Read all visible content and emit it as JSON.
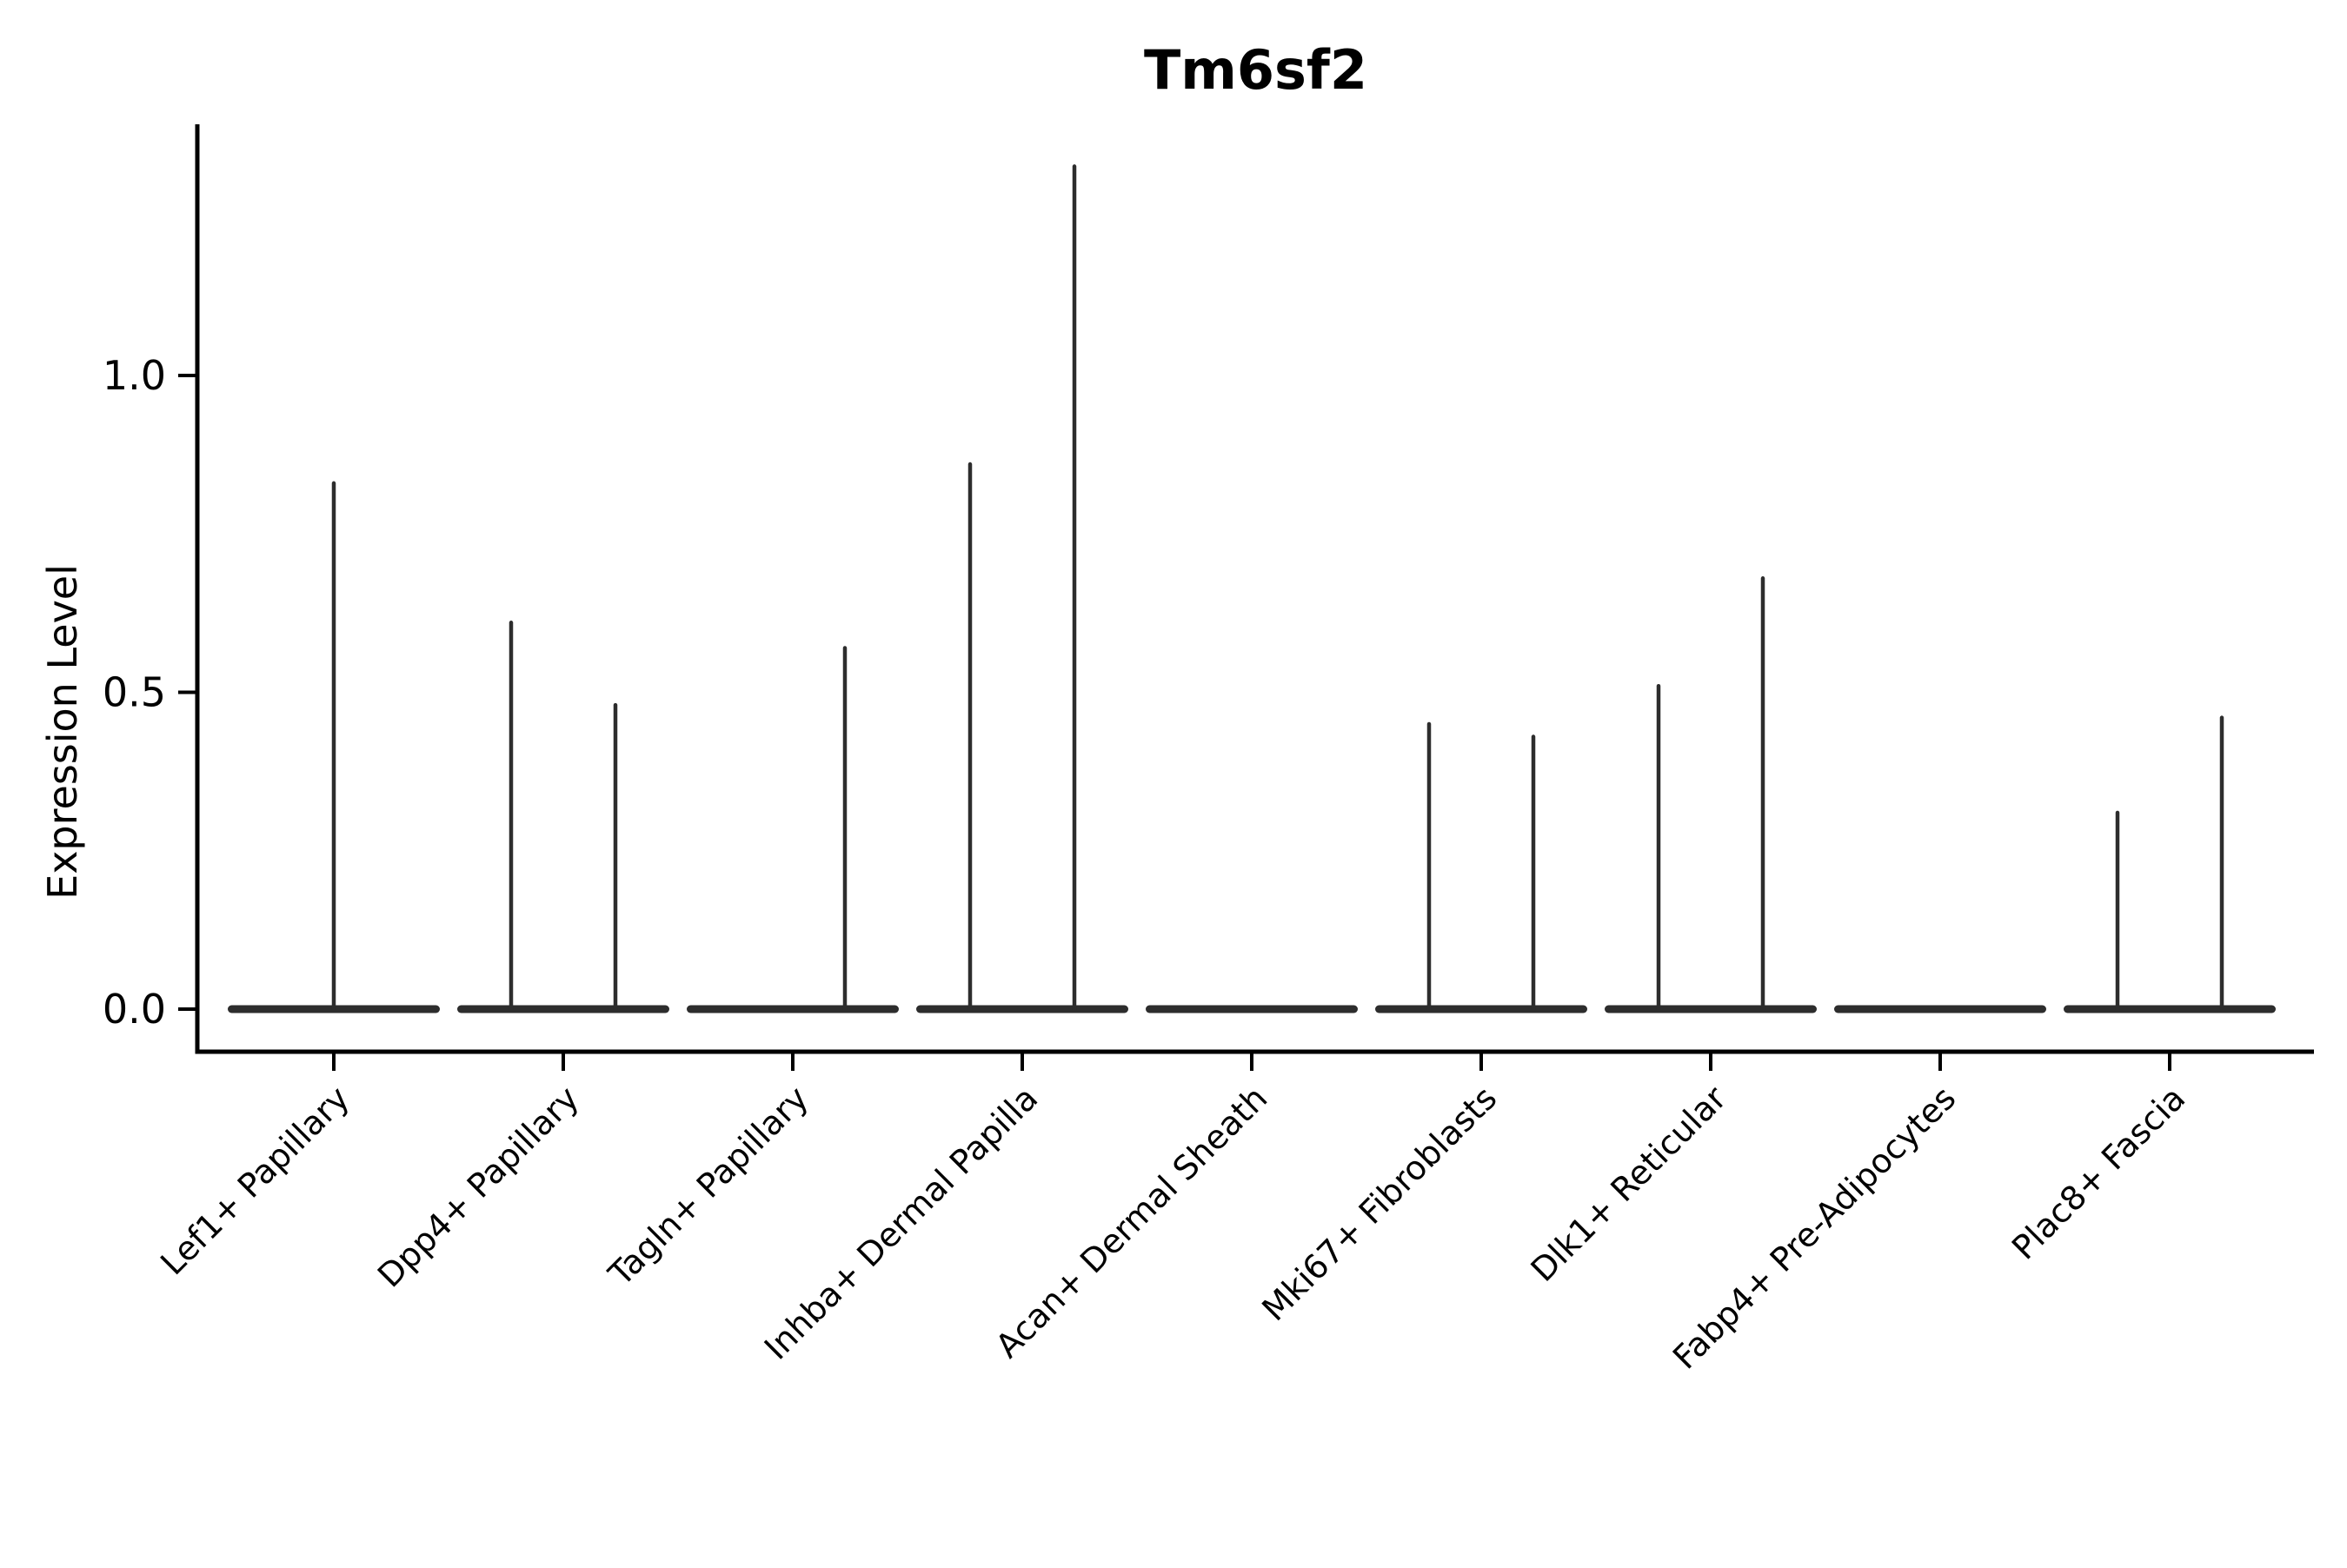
{
  "title": "Tm6sf2",
  "chart_data": {
    "type": "violin",
    "title": "Tm6sf2",
    "subtitle": "",
    "xlabel": "",
    "ylabel": "Expression Level",
    "ylim": [
      0,
      1.4
    ],
    "yticks": [
      0.0,
      0.5,
      1.0
    ],
    "ytick_labels": [
      "0.0",
      "0.5",
      "1.0"
    ],
    "grid": false,
    "legend_position": "none",
    "categories": [
      "Lef1+ Papillary",
      "Dpp4+ Papillary",
      "Tagln+ Papillary",
      "Inhba+ Dermal Papilla",
      "Acan+ Dermal Sheath",
      "Mki67+ Fibroblasts",
      "Dlk1+ Reticular",
      "Fabp4+ Pre-Adipocytes",
      "Plac8+ Fascia"
    ],
    "x_tick_label_rotation_deg": 45,
    "violin_description": "Each category shows a flat violin base at expression 0 with thin density spikes rising to the maximum expression value; spikes sit at the violin center or at the left/right sub-violin position.",
    "baseline_value": 0.0,
    "violins": [
      {
        "category": "Lef1+ Papillary",
        "spikes": [
          {
            "position": "center",
            "max_expression": 0.83
          }
        ]
      },
      {
        "category": "Dpp4+ Papillary",
        "spikes": [
          {
            "position": "left",
            "max_expression": 0.61
          },
          {
            "position": "right",
            "max_expression": 0.48
          }
        ]
      },
      {
        "category": "Tagln+ Papillary",
        "spikes": [
          {
            "position": "right",
            "max_expression": 0.57
          }
        ]
      },
      {
        "category": "Inhba+ Dermal Papilla",
        "spikes": [
          {
            "position": "left",
            "max_expression": 0.86
          },
          {
            "position": "right",
            "max_expression": 1.33
          }
        ]
      },
      {
        "category": "Acan+ Dermal Sheath",
        "spikes": []
      },
      {
        "category": "Mki67+ Fibroblasts",
        "spikes": [
          {
            "position": "left",
            "max_expression": 0.45
          },
          {
            "position": "right",
            "max_expression": 0.43
          }
        ]
      },
      {
        "category": "Dlk1+ Reticular",
        "spikes": [
          {
            "position": "left",
            "max_expression": 0.51
          },
          {
            "position": "right",
            "max_expression": 0.68
          }
        ]
      },
      {
        "category": "Fabp4+ Pre-Adipocytes",
        "spikes": []
      },
      {
        "category": "Plac8+ Fascia",
        "spikes": [
          {
            "position": "left",
            "max_expression": 0.31
          },
          {
            "position": "right",
            "max_expression": 0.46
          }
        ]
      }
    ],
    "colors": {
      "violin": "#2d2d2d",
      "axis": "#000000",
      "text": "#000000",
      "background": "#ffffff"
    }
  }
}
